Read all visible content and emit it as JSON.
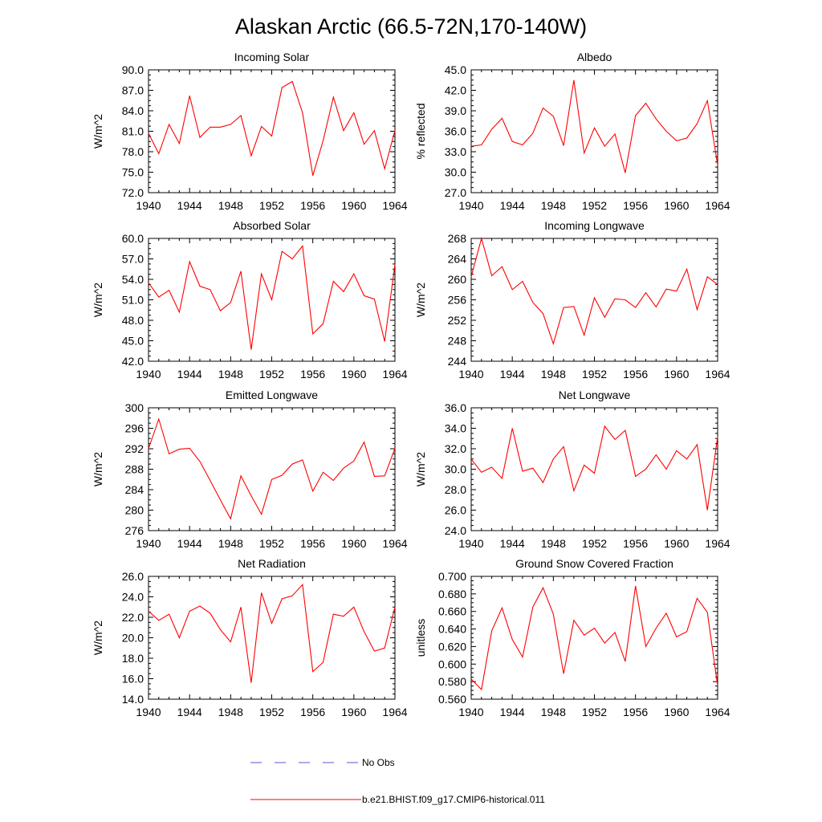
{
  "figure": {
    "title": "Alaskan Arctic (66.5-72N,170-140W)"
  },
  "legend": {
    "obs_label": "No Obs",
    "obs_color": "#5555cc",
    "model_label": "b.e21.BHIST.f09_g17.CMIP6-historical.011",
    "model_color": "#ff0000"
  },
  "chart_data": [
    {
      "type": "line",
      "title": "Incoming Solar",
      "ylabel": "W/m^2",
      "x": [
        1940,
        1941,
        1942,
        1943,
        1944,
        1945,
        1946,
        1947,
        1948,
        1949,
        1950,
        1951,
        1952,
        1953,
        1954,
        1955,
        1956,
        1957,
        1958,
        1959,
        1960,
        1961,
        1962,
        1963,
        1964
      ],
      "y": [
        80.7,
        77.7,
        82.0,
        79.2,
        86.2,
        80.1,
        81.6,
        81.6,
        82.0,
        83.3,
        77.4,
        81.7,
        80.3,
        87.4,
        88.3,
        83.7,
        74.5,
        79.6,
        86.0,
        81.1,
        83.7,
        79.1,
        81.1,
        75.5,
        81.1
      ],
      "xlim": [
        1940,
        1964
      ],
      "ylim": [
        72.0,
        90.0
      ],
      "yticks": [
        "72.0",
        "75.0",
        "78.0",
        "81.0",
        "84.0",
        "87.0",
        "90.0"
      ],
      "xticks": [
        "1940",
        "1944",
        "1948",
        "1952",
        "1956",
        "1960",
        "1964"
      ]
    },
    {
      "type": "line",
      "title": "Albedo",
      "ylabel": "% reflected",
      "x": [
        1940,
        1941,
        1942,
        1943,
        1944,
        1945,
        1946,
        1947,
        1948,
        1949,
        1950,
        1951,
        1952,
        1953,
        1954,
        1955,
        1956,
        1957,
        1958,
        1959,
        1960,
        1961,
        1962,
        1963,
        1964
      ],
      "y": [
        33.8,
        34.0,
        36.3,
        37.9,
        34.5,
        34.0,
        35.7,
        39.4,
        38.2,
        33.9,
        43.5,
        32.8,
        36.5,
        33.8,
        35.6,
        29.9,
        38.3,
        40.1,
        37.8,
        36.0,
        34.6,
        35.0,
        37.1,
        40.5,
        31.0
      ],
      "xlim": [
        1940,
        1964
      ],
      "ylim": [
        27.0,
        45.0
      ],
      "yticks": [
        "27.0",
        "30.0",
        "33.0",
        "36.0",
        "39.0",
        "42.0",
        "45.0"
      ],
      "xticks": [
        "1940",
        "1944",
        "1948",
        "1952",
        "1956",
        "1960",
        "1964"
      ]
    },
    {
      "type": "line",
      "title": "Absorbed Solar",
      "ylabel": "W/m^2",
      "x": [
        1940,
        1941,
        1942,
        1943,
        1944,
        1945,
        1946,
        1947,
        1948,
        1949,
        1950,
        1951,
        1952,
        1953,
        1954,
        1955,
        1956,
        1957,
        1958,
        1959,
        1960,
        1961,
        1962,
        1963,
        1964
      ],
      "y": [
        53.5,
        51.4,
        52.4,
        49.2,
        56.6,
        53.0,
        52.5,
        49.4,
        50.6,
        55.2,
        43.7,
        54.8,
        51.0,
        58.1,
        57.0,
        58.9,
        46.0,
        47.5,
        53.7,
        52.2,
        54.8,
        51.6,
        51.1,
        44.9,
        56.2
      ],
      "xlim": [
        1940,
        1964
      ],
      "ylim": [
        42.0,
        60.0
      ],
      "yticks": [
        "42.0",
        "45.0",
        "48.0",
        "51.0",
        "54.0",
        "57.0",
        "60.0"
      ],
      "xticks": [
        "1940",
        "1944",
        "1948",
        "1952",
        "1956",
        "1960",
        "1964"
      ]
    },
    {
      "type": "line",
      "title": "Incoming Longwave",
      "ylabel": "W/m^2",
      "x": [
        1940,
        1941,
        1942,
        1943,
        1944,
        1945,
        1946,
        1947,
        1948,
        1949,
        1950,
        1951,
        1952,
        1953,
        1954,
        1955,
        1956,
        1957,
        1958,
        1959,
        1960,
        1961,
        1962,
        1963,
        1964
      ],
      "y": [
        260.5,
        268.0,
        260.7,
        262.5,
        258.0,
        259.6,
        255.5,
        253.3,
        247.4,
        254.5,
        254.7,
        249.1,
        256.4,
        252.6,
        256.2,
        256.0,
        254.5,
        257.4,
        254.6,
        258.1,
        257.7,
        262.0,
        254.1,
        260.5,
        259.0
      ],
      "xlim": [
        1940,
        1964
      ],
      "ylim": [
        244,
        268
      ],
      "yticks": [
        "244",
        "248",
        "252",
        "256",
        "260",
        "264",
        "268"
      ],
      "xticks": [
        "1940",
        "1944",
        "1948",
        "1952",
        "1956",
        "1960",
        "1964"
      ]
    },
    {
      "type": "line",
      "title": "Emitted Longwave",
      "ylabel": "W/m^2",
      "x": [
        1940,
        1941,
        1942,
        1943,
        1944,
        1945,
        1946,
        1947,
        1948,
        1949,
        1950,
        1951,
        1952,
        1953,
        1954,
        1955,
        1956,
        1957,
        1958,
        1959,
        1960,
        1961,
        1962,
        1963,
        1964
      ],
      "y": [
        292.0,
        297.8,
        291.0,
        291.9,
        292.1,
        289.5,
        285.8,
        282.0,
        278.3,
        286.7,
        282.8,
        279.2,
        286.0,
        286.8,
        289.0,
        289.8,
        283.7,
        287.4,
        285.8,
        288.2,
        289.6,
        293.3,
        286.6,
        286.7,
        292.1
      ],
      "xlim": [
        1940,
        1964
      ],
      "ylim": [
        276,
        300
      ],
      "yticks": [
        "276",
        "280",
        "284",
        "288",
        "292",
        "296",
        "300"
      ],
      "xticks": [
        "1940",
        "1944",
        "1948",
        "1952",
        "1956",
        "1960",
        "1964"
      ]
    },
    {
      "type": "line",
      "title": "Net Longwave",
      "ylabel": "W/m^2",
      "x": [
        1940,
        1941,
        1942,
        1943,
        1944,
        1945,
        1946,
        1947,
        1948,
        1949,
        1950,
        1951,
        1952,
        1953,
        1954,
        1955,
        1956,
        1957,
        1958,
        1959,
        1960,
        1961,
        1962,
        1963,
        1964
      ],
      "y": [
        31.0,
        29.7,
        30.2,
        29.1,
        34.0,
        29.8,
        30.1,
        28.7,
        31.0,
        32.2,
        27.9,
        30.4,
        29.6,
        34.2,
        32.9,
        33.8,
        29.3,
        30.0,
        31.4,
        30.0,
        31.8,
        31.0,
        32.4,
        26.0,
        33.2
      ],
      "xlim": [
        1940,
        1964
      ],
      "ylim": [
        24.0,
        36.0
      ],
      "yticks": [
        "24.0",
        "26.0",
        "28.0",
        "30.0",
        "32.0",
        "34.0",
        "36.0"
      ],
      "xticks": [
        "1940",
        "1944",
        "1948",
        "1952",
        "1956",
        "1960",
        "1964"
      ]
    },
    {
      "type": "line",
      "title": "Net Radiation",
      "ylabel": "W/m^2",
      "x": [
        1940,
        1941,
        1942,
        1943,
        1944,
        1945,
        1946,
        1947,
        1948,
        1949,
        1950,
        1951,
        1952,
        1953,
        1954,
        1955,
        1956,
        1957,
        1958,
        1959,
        1960,
        1961,
        1962,
        1963,
        1964
      ],
      "y": [
        22.6,
        21.7,
        22.3,
        20.0,
        22.6,
        23.1,
        22.4,
        20.8,
        19.6,
        23.0,
        15.6,
        24.4,
        21.4,
        23.8,
        24.1,
        25.2,
        16.7,
        17.6,
        22.3,
        22.1,
        23.0,
        20.6,
        18.7,
        19.0,
        23.0
      ],
      "xlim": [
        1940,
        1964
      ],
      "ylim": [
        14.0,
        26.0
      ],
      "yticks": [
        "14.0",
        "16.0",
        "18.0",
        "20.0",
        "22.0",
        "24.0",
        "26.0"
      ],
      "xticks": [
        "1940",
        "1944",
        "1948",
        "1952",
        "1956",
        "1960",
        "1964"
      ]
    },
    {
      "type": "line",
      "title": "Ground Snow Covered Fraction",
      "ylabel": "unitless",
      "x": [
        1940,
        1941,
        1942,
        1943,
        1944,
        1945,
        1946,
        1947,
        1948,
        1949,
        1950,
        1951,
        1952,
        1953,
        1954,
        1955,
        1956,
        1957,
        1958,
        1959,
        1960,
        1961,
        1962,
        1963,
        1964
      ],
      "y": [
        0.583,
        0.571,
        0.638,
        0.664,
        0.628,
        0.608,
        0.665,
        0.687,
        0.657,
        0.589,
        0.65,
        0.633,
        0.641,
        0.624,
        0.636,
        0.603,
        0.689,
        0.62,
        0.641,
        0.658,
        0.631,
        0.637,
        0.675,
        0.659,
        0.575
      ],
      "xlim": [
        1940,
        1964
      ],
      "ylim": [
        0.56,
        0.7
      ],
      "yticks": [
        "0.560",
        "0.580",
        "0.600",
        "0.620",
        "0.640",
        "0.660",
        "0.680",
        "0.700"
      ],
      "xticks": [
        "1940",
        "1944",
        "1948",
        "1952",
        "1956",
        "1960",
        "1964"
      ]
    }
  ]
}
